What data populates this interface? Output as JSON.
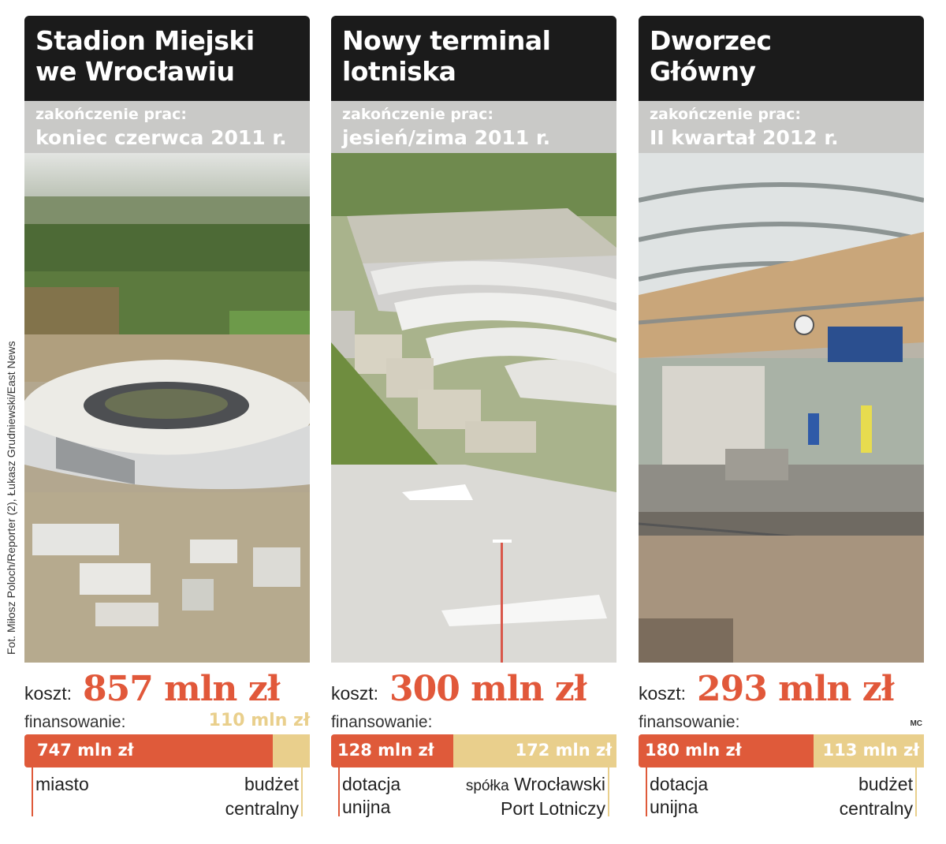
{
  "credit": "Fot. Miłosz Poloch/Reporter (2), Łukasz Grudniewski/East News",
  "labels": {
    "completion": "zakończenie prac:",
    "cost": "koszt:",
    "financing": "finansowanie:"
  },
  "panels": [
    {
      "title_line1": "Stadion Miejski",
      "title_line2": "we Wrocławiu",
      "completion_date": "koniec czerwca 2011 r.",
      "cost": "857 mln zł",
      "top_label": "110 mln zł",
      "segments": [
        {
          "value": "747 mln zł",
          "amount": 747,
          "color": "#df5a3a"
        },
        {
          "value": "",
          "amount": 110,
          "color": "#e9cf8c"
        }
      ],
      "source_left_1": "",
      "source_left_2": "miasto",
      "source_right_prefix": "",
      "source_right_1": "budżet",
      "source_right_2": "centralny"
    },
    {
      "title_line1": "Nowy terminal",
      "title_line2": "lotniska",
      "completion_date": "jesień/zima 2011 r.",
      "cost": "300 mln zł",
      "top_label": "",
      "segments": [
        {
          "value": "128 mln zł",
          "amount": 128,
          "color": "#df5a3a"
        },
        {
          "value": "172 mln zł",
          "amount": 172,
          "color": "#e9cf8c"
        }
      ],
      "source_left_1": "dotacja",
      "source_left_2": "unijna",
      "source_right_prefix": "spółka",
      "source_right_1": "Wrocławski",
      "source_right_2": "Port Lotniczy"
    },
    {
      "title_line1": "Dworzec",
      "title_line2": "Główny",
      "completion_date": "II kwartał 2012 r.",
      "cost": "293 mln zł",
      "top_label": "",
      "mc": "MC",
      "segments": [
        {
          "value": "180 mln zł",
          "amount": 180,
          "color": "#df5a3a"
        },
        {
          "value": "113 mln zł",
          "amount": 113,
          "color": "#e9cf8c"
        }
      ],
      "source_left_1": "dotacja",
      "source_left_2": "unijna",
      "source_right_prefix": "",
      "source_right_1": "budżet",
      "source_right_2": "centralny"
    }
  ]
}
